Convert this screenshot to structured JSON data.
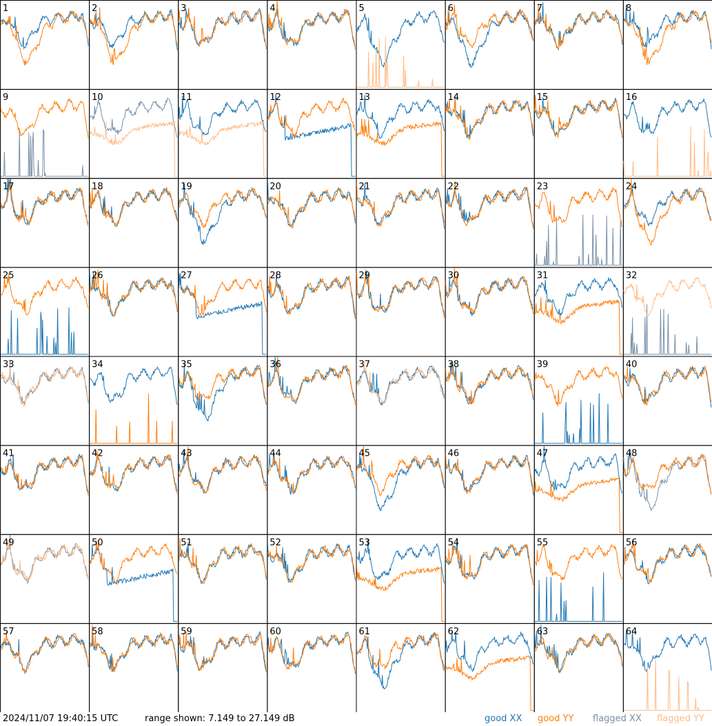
{
  "chart_data": {
    "type": "line",
    "grid": "8x8 small multiples",
    "panel_labels": [
      "1",
      "2",
      "3",
      "4",
      "5",
      "6",
      "7",
      "8",
      "9",
      "10",
      "11",
      "12",
      "13",
      "14",
      "15",
      "16",
      "17",
      "18",
      "19",
      "20",
      "21",
      "22",
      "23",
      "24",
      "25",
      "26",
      "27",
      "28",
      "29",
      "30",
      "31",
      "32",
      "33",
      "34",
      "35",
      "36",
      "37",
      "38",
      "39",
      "40",
      "41",
      "42",
      "43",
      "44",
      "45",
      "46",
      "47",
      "48",
      "49",
      "50",
      "51",
      "52",
      "53",
      "54",
      "55",
      "56",
      "57",
      "58",
      "59",
      "60",
      "61",
      "62",
      "63",
      "64"
    ],
    "ylim_db": [
      7.149,
      27.149
    ],
    "series_styles": [
      {
        "name": "good XX",
        "color": "#1f77b4"
      },
      {
        "name": "good YY",
        "color": "#ff7f0e"
      },
      {
        "name": "flagged XX",
        "color": "#7890a8"
      },
      {
        "name": "flagged YY",
        "color": "#ffbb88"
      }
    ],
    "panels": [
      {
        "xx": "good",
        "yy": "good",
        "xp": "N",
        "yp": "D"
      },
      {
        "xx": "good",
        "yy": "good",
        "xp": "N",
        "yp": "D"
      },
      {
        "xx": "good",
        "yy": "good",
        "xp": "N",
        "yp": "N"
      },
      {
        "xx": "good",
        "yy": "good",
        "xp": "N",
        "yp": "N"
      },
      {
        "xx": "good",
        "yy": "flagged",
        "xp": "D",
        "yp": "Z"
      },
      {
        "xx": "good",
        "yy": "good",
        "xp": "D",
        "yp": "N"
      },
      {
        "xx": "good",
        "yy": "good",
        "xp": "N",
        "yp": "N"
      },
      {
        "xx": "good",
        "yy": "good",
        "xp": "N",
        "yp": "D"
      },
      {
        "xx": "flagged",
        "yy": "good",
        "xp": "Z",
        "yp": "N"
      },
      {
        "xx": "flagged",
        "yy": "flagged",
        "xp": "N",
        "yp": "L"
      },
      {
        "xx": "good",
        "yy": "flagged",
        "xp": "N",
        "yp": "L"
      },
      {
        "xx": "good",
        "yy": "good",
        "xp": "C",
        "yp": "N"
      },
      {
        "xx": "good",
        "yy": "good",
        "xp": "N",
        "yp": "L"
      },
      {
        "xx": "good",
        "yy": "good",
        "xp": "N",
        "yp": "N"
      },
      {
        "xx": "good",
        "yy": "good",
        "xp": "N",
        "yp": "N"
      },
      {
        "xx": "good",
        "yy": "flagged",
        "xp": "N",
        "yp": "Z"
      },
      {
        "xx": "good",
        "yy": "good",
        "xp": "N",
        "yp": "N"
      },
      {
        "xx": "good",
        "yy": "good",
        "xp": "N",
        "yp": "N"
      },
      {
        "xx": "good",
        "yy": "good",
        "xp": "D",
        "yp": "N"
      },
      {
        "xx": "good",
        "yy": "good",
        "xp": "N",
        "yp": "N"
      },
      {
        "xx": "good",
        "yy": "good",
        "xp": "N",
        "yp": "N"
      },
      {
        "xx": "good",
        "yy": "good",
        "xp": "N",
        "yp": "N"
      },
      {
        "xx": "flagged",
        "yy": "good",
        "xp": "Z",
        "yp": "N"
      },
      {
        "xx": "good",
        "yy": "good",
        "xp": "N",
        "yp": "D"
      },
      {
        "xx": "good",
        "yy": "good",
        "xp": "Z",
        "yp": "N"
      },
      {
        "xx": "good",
        "yy": "good",
        "xp": "N",
        "yp": "N"
      },
      {
        "xx": "good",
        "yy": "good",
        "xp": "C",
        "yp": "N"
      },
      {
        "xx": "good",
        "yy": "good",
        "xp": "N",
        "yp": "N"
      },
      {
        "xx": "good",
        "yy": "good",
        "xp": "N",
        "yp": "N"
      },
      {
        "xx": "good",
        "yy": "good",
        "xp": "N",
        "yp": "N"
      },
      {
        "xx": "good",
        "yy": "good",
        "xp": "N",
        "yp": "L"
      },
      {
        "xx": "flagged",
        "yy": "flagged",
        "xp": "Z",
        "yp": "N"
      },
      {
        "xx": "flagged",
        "yy": "flagged",
        "xp": "N",
        "yp": "N"
      },
      {
        "xx": "good",
        "yy": "good",
        "xp": "N",
        "yp": "Z"
      },
      {
        "xx": "good",
        "yy": "good",
        "xp": "D",
        "yp": "N"
      },
      {
        "xx": "good",
        "yy": "good",
        "xp": "N",
        "yp": "N"
      },
      {
        "xx": "good",
        "yy": "flagged",
        "xp": "N",
        "yp": "N"
      },
      {
        "xx": "good",
        "yy": "good",
        "xp": "N",
        "yp": "N"
      },
      {
        "xx": "good",
        "yy": "good",
        "xp": "Z",
        "yp": "N"
      },
      {
        "xx": "good",
        "yy": "good",
        "xp": "N",
        "yp": "N"
      },
      {
        "xx": "good",
        "yy": "good",
        "xp": "N",
        "yp": "N"
      },
      {
        "xx": "good",
        "yy": "good",
        "xp": "N",
        "yp": "N"
      },
      {
        "xx": "good",
        "yy": "good",
        "xp": "N",
        "yp": "N"
      },
      {
        "xx": "good",
        "yy": "good",
        "xp": "N",
        "yp": "N"
      },
      {
        "xx": "good",
        "yy": "good",
        "xp": "D",
        "yp": "N"
      },
      {
        "xx": "good",
        "yy": "good",
        "xp": "N",
        "yp": "N"
      },
      {
        "xx": "good",
        "yy": "good",
        "xp": "N",
        "yp": "L"
      },
      {
        "xx": "flagged",
        "yy": "good",
        "xp": "D",
        "yp": "N"
      },
      {
        "xx": "flagged",
        "yy": "flagged",
        "xp": "N",
        "yp": "N"
      },
      {
        "xx": "good",
        "yy": "good",
        "xp": "C",
        "yp": "N"
      },
      {
        "xx": "good",
        "yy": "good",
        "xp": "N",
        "yp": "N"
      },
      {
        "xx": "good",
        "yy": "good",
        "xp": "N",
        "yp": "N"
      },
      {
        "xx": "good",
        "yy": "good",
        "xp": "N",
        "yp": "L"
      },
      {
        "xx": "good",
        "yy": "good",
        "xp": "N",
        "yp": "N"
      },
      {
        "xx": "good",
        "yy": "good",
        "xp": "Z",
        "yp": "N"
      },
      {
        "xx": "good",
        "yy": "good",
        "xp": "N",
        "yp": "N"
      },
      {
        "xx": "good",
        "yy": "good",
        "xp": "N",
        "yp": "N"
      },
      {
        "xx": "good",
        "yy": "good",
        "xp": "N",
        "yp": "N"
      },
      {
        "xx": "good",
        "yy": "good",
        "xp": "N",
        "yp": "N"
      },
      {
        "xx": "good",
        "yy": "good",
        "xp": "N",
        "yp": "N"
      },
      {
        "xx": "good",
        "yy": "good",
        "xp": "D",
        "yp": "N"
      },
      {
        "xx": "good",
        "yy": "good",
        "xp": "N",
        "yp": "L"
      },
      {
        "xx": "good",
        "yy": "good",
        "xp": "N",
        "yp": "N"
      },
      {
        "xx": "good",
        "yy": "flagged",
        "xp": "N",
        "yp": "Z"
      }
    ]
  },
  "footer": {
    "timestamp": "2024/11/07 19:40:15 UTC",
    "range": "range shown: 7.149 to 27.149 dB",
    "legend": [
      "good XX",
      "good YY",
      "flagged XX",
      "flagged YY"
    ]
  }
}
